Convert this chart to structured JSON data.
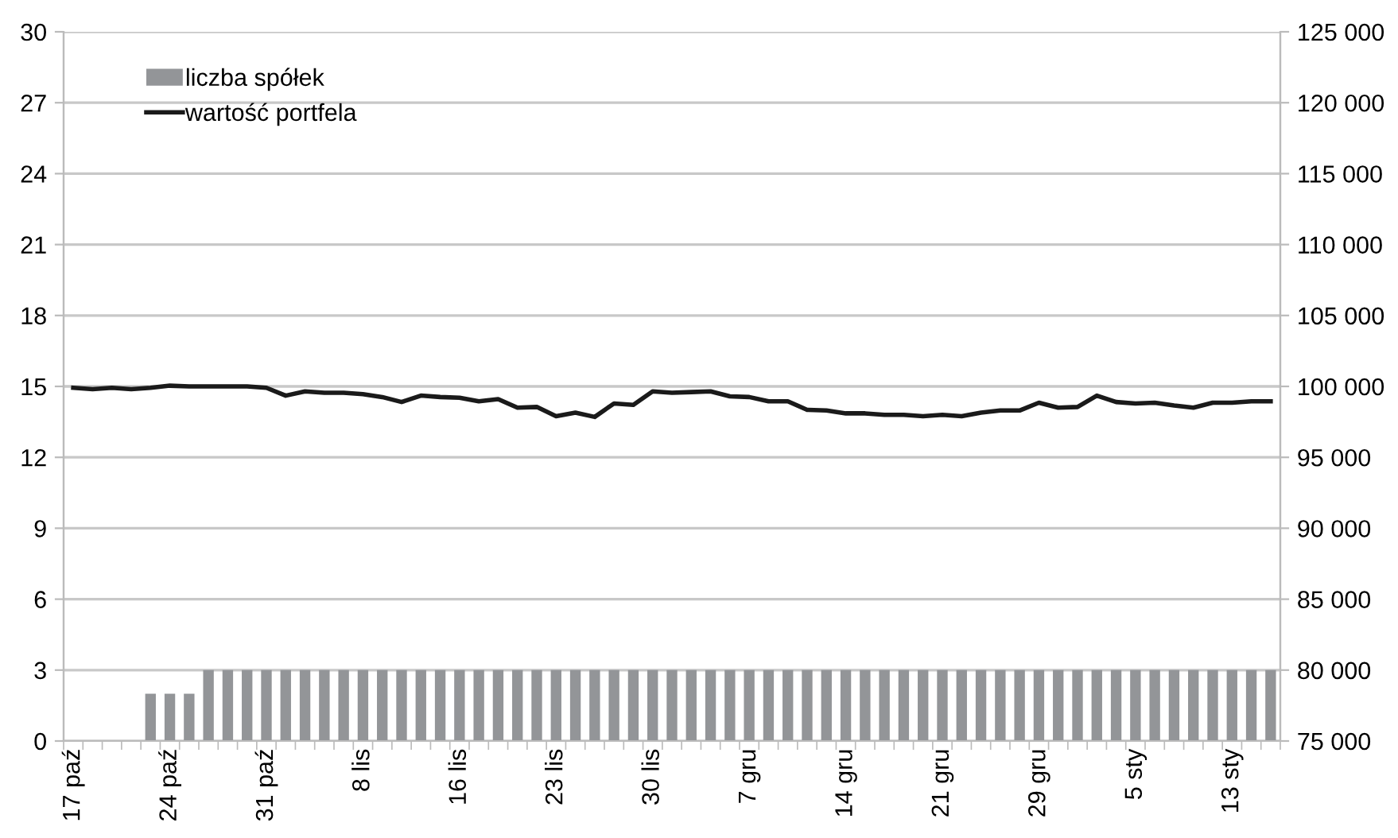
{
  "chart_data": {
    "type": "bar",
    "categories": [
      "17 paź",
      null,
      null,
      null,
      null,
      "24 paź",
      null,
      null,
      null,
      null,
      "31 paź",
      null,
      null,
      null,
      null,
      "8 lis",
      null,
      null,
      null,
      null,
      "16 lis",
      null,
      null,
      null,
      null,
      "23 lis",
      null,
      null,
      null,
      null,
      "30 lis",
      null,
      null,
      null,
      null,
      "7 gru",
      null,
      null,
      null,
      null,
      "14 gru",
      null,
      null,
      null,
      null,
      "21 gru",
      null,
      null,
      null,
      null,
      "29 gru",
      null,
      null,
      null,
      null,
      "5 sty",
      null,
      null,
      null,
      null,
      "13 sty",
      null,
      null
    ],
    "series": [
      {
        "name": "liczba spółek",
        "color": "#939598",
        "values": [
          0,
          0,
          0,
          0,
          2,
          2,
          2,
          3,
          3,
          3,
          3,
          3,
          3,
          3,
          3,
          3,
          3,
          3,
          3,
          3,
          3,
          3,
          3,
          3,
          3,
          3,
          3,
          3,
          3,
          3,
          3,
          3,
          3,
          3,
          3,
          3,
          3,
          3,
          3,
          3,
          3,
          3,
          3,
          3,
          3,
          3,
          3,
          3,
          3,
          3,
          3,
          3,
          3,
          3,
          3,
          3,
          3,
          3,
          3,
          3,
          3,
          3,
          3
        ]
      },
      {
        "name": "wartość portfela",
        "type": "line",
        "axis": "y2",
        "color": "#1a1a1a",
        "values": [
          99900,
          99800,
          99900,
          99800,
          99900,
          100050,
          100000,
          100000,
          100000,
          100000,
          99900,
          99350,
          99650,
          99550,
          99550,
          99450,
          99250,
          98900,
          99350,
          99250,
          99200,
          98950,
          99100,
          98500,
          98550,
          97900,
          98150,
          97850,
          98800,
          98700,
          99650,
          99550,
          99600,
          99650,
          99300,
          99250,
          98950,
          98950,
          98350,
          98300,
          98100,
          98100,
          98000,
          98000,
          97900,
          98000,
          97900,
          98150,
          98300,
          98300,
          98850,
          98500,
          98550,
          99350,
          98900,
          98800,
          98850,
          98650,
          98500,
          98850,
          98850,
          98950,
          98950
        ]
      }
    ],
    "ylim": [
      0,
      30
    ],
    "yticks": [
      0,
      3,
      6,
      9,
      12,
      15,
      18,
      21,
      24,
      27,
      30
    ],
    "y2lim": [
      75000,
      125000
    ],
    "y2ticks": [
      {
        "value": 75000,
        "label": "75 000"
      },
      {
        "value": 80000,
        "label": "80 000"
      },
      {
        "value": 85000,
        "label": "85 000"
      },
      {
        "value": 90000,
        "label": "90 000"
      },
      {
        "value": 95000,
        "label": "95 000"
      },
      {
        "value": 100000,
        "label": "100 000"
      },
      {
        "value": 105000,
        "label": "105 000"
      },
      {
        "value": 110000,
        "label": "110 000"
      },
      {
        "value": 115000,
        "label": "115 000"
      },
      {
        "value": 120000,
        "label": "120 000"
      },
      {
        "value": 125000,
        "label": "125 000"
      }
    ],
    "grid": "y",
    "legend": "top left",
    "line_style": "solid",
    "marker": "none"
  }
}
